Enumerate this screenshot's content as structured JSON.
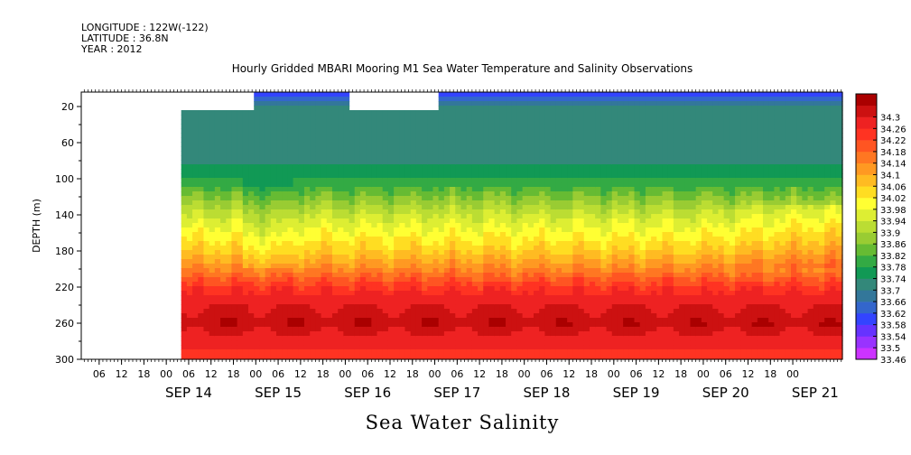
{
  "header": {
    "longitude": "LONGITUDE : 122W(-122)",
    "latitude": "LATITUDE : 36.8N",
    "year": "YEAR : 2012"
  },
  "chart_data": {
    "type": "heatmap",
    "title": "Hourly Gridded MBARI Mooring M1 Sea Water Temperature and Salinity Observations",
    "xlabel": "Sea Water Salinity",
    "ylabel": "DEPTH (m)",
    "y_ticks": [
      20,
      60,
      100,
      140,
      180,
      220,
      260,
      300
    ],
    "y_range": [
      4,
      300
    ],
    "y_inverted": true,
    "x_range_hours_from_sep14_00": [
      -16.8,
      187.3
    ],
    "x_hour_ticks": [
      "06",
      "12",
      "18",
      "00",
      "06",
      "12",
      "18",
      "00",
      "06",
      "12",
      "18",
      "00",
      "06",
      "12",
      "18",
      "00",
      "06",
      "12",
      "18",
      "00",
      "06",
      "12",
      "18",
      "00",
      "06",
      "12",
      "18",
      "00",
      "06",
      "12",
      "18",
      "00"
    ],
    "x_day_labels": [
      "SEP 14",
      "SEP 15",
      "SEP 16",
      "SEP 17",
      "SEP 18",
      "SEP 19",
      "SEP 20",
      "SEP 21"
    ],
    "data_start_hour": 10,
    "colorbar_levels": [
      "33.46",
      "33.5",
      "33.54",
      "33.58",
      "33.62",
      "33.66",
      "33.7",
      "33.74",
      "33.78",
      "33.82",
      "33.86",
      "33.9",
      "33.94",
      "33.98",
      "34.02",
      "34.06",
      "34.1",
      "34.14",
      "34.18",
      "34.22",
      "34.26",
      "34.3"
    ],
    "colorbar_colors": [
      "#cc33ff",
      "#9933ff",
      "#6633ff",
      "#3344ff",
      "#3366cc",
      "#33779a",
      "#33887a",
      "#119955",
      "#33aa44",
      "#66bb33",
      "#99cc33",
      "#bbdd33",
      "#ddee33",
      "#ffff33",
      "#ffdd22",
      "#ffbb22",
      "#ff9922",
      "#ff7722",
      "#ff5522",
      "#ff3322",
      "#ee2222",
      "#cc1111",
      "#aa0000"
    ],
    "salinity_profile_typical": {
      "depths": [
        4,
        20,
        40,
        60,
        80,
        100,
        120,
        140,
        160,
        180,
        200,
        220,
        240,
        260,
        280,
        300
      ],
      "values": [
        33.56,
        33.66,
        33.67,
        33.67,
        33.69,
        33.74,
        33.82,
        33.9,
        33.96,
        34.02,
        34.1,
        34.2,
        34.26,
        34.29,
        34.24,
        34.2
      ]
    },
    "missing_data_windows": [
      {
        "start_hour": 10,
        "end_hour": 29,
        "depth_top": 4,
        "depth_bottom": 20
      },
      {
        "start_hour": 54,
        "end_hour": 78,
        "depth_top": 4,
        "depth_bottom": 20
      }
    ]
  }
}
